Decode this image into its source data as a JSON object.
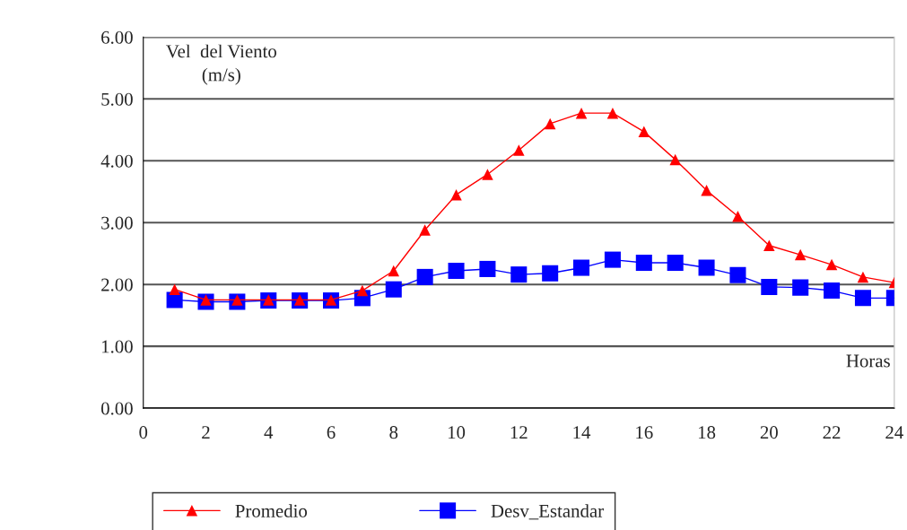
{
  "chart_data": {
    "type": "line",
    "xlabel": "Horas",
    "ylabel": "Vel  del Viento\n(m/s)",
    "x": [
      1,
      2,
      3,
      4,
      5,
      6,
      7,
      8,
      9,
      10,
      11,
      12,
      13,
      14,
      15,
      16,
      17,
      18,
      19,
      20,
      21,
      22,
      23,
      24
    ],
    "series": [
      {
        "name": "Promedio",
        "color": "#ff0000",
        "marker": "triangle",
        "values": [
          1.92,
          1.75,
          1.75,
          1.75,
          1.75,
          1.75,
          1.9,
          2.22,
          2.88,
          3.45,
          3.78,
          4.17,
          4.6,
          4.77,
          4.77,
          4.47,
          4.02,
          3.52,
          3.1,
          2.63,
          2.48,
          2.32,
          2.12,
          2.03
        ]
      },
      {
        "name": "Desv_Estandar",
        "color": "#0000ff",
        "marker": "square",
        "values": [
          1.75,
          1.72,
          1.72,
          1.74,
          1.74,
          1.74,
          1.78,
          1.92,
          2.12,
          2.22,
          2.25,
          2.16,
          2.18,
          2.27,
          2.4,
          2.35,
          2.35,
          2.27,
          2.15,
          1.96,
          1.95,
          1.9,
          1.78,
          1.78
        ]
      }
    ],
    "xlim": [
      0,
      24
    ],
    "xticks": [
      0,
      2,
      4,
      6,
      8,
      10,
      12,
      14,
      16,
      18,
      20,
      22,
      24
    ],
    "ylim": [
      0,
      6
    ],
    "yticks": [
      {
        "value": 0,
        "label": "0.00"
      },
      {
        "value": 1,
        "label": "1.00"
      },
      {
        "value": 2,
        "label": "2.00"
      },
      {
        "value": 3,
        "label": "3.00"
      },
      {
        "value": 4,
        "label": "4.00"
      },
      {
        "value": 5,
        "label": "5.00"
      },
      {
        "value": 6,
        "label": "6.00"
      }
    ],
    "grid": "y",
    "legend": "bottom",
    "line_style": "solid"
  }
}
